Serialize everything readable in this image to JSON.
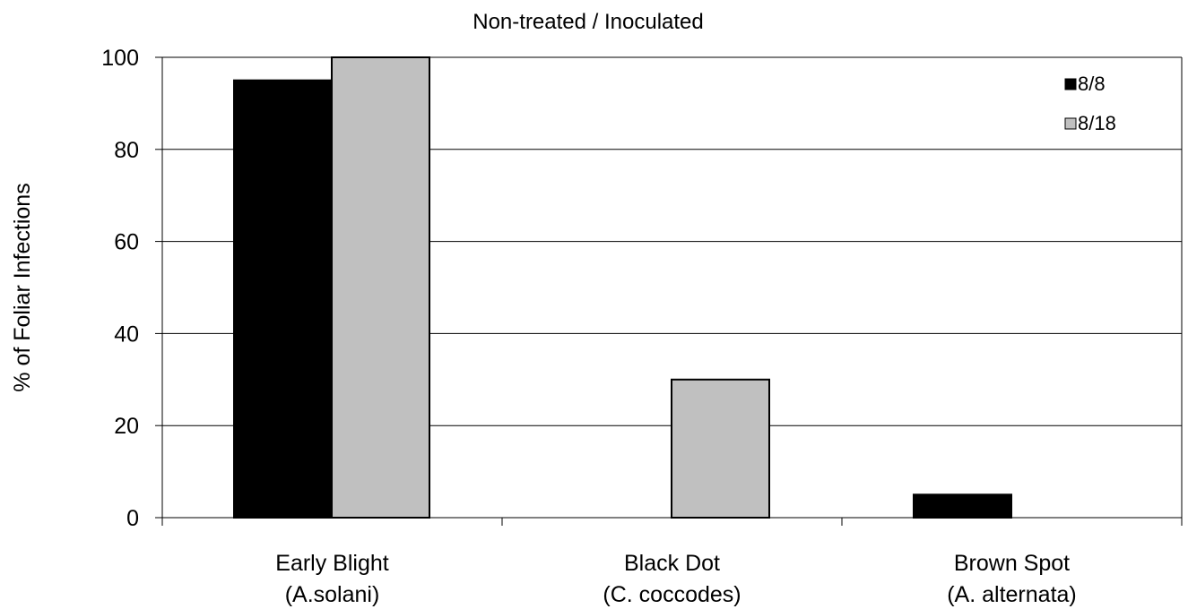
{
  "chart_data": {
    "type": "bar",
    "title": "Non-treated / Inoculated",
    "xlabel": "",
    "ylabel": "% of Foliar Infections",
    "categories": [
      [
        "Early Blight",
        "(A.solani)"
      ],
      [
        "Black Dot",
        "(C. coccodes)"
      ],
      [
        "Brown Spot",
        "(A. alternata)"
      ]
    ],
    "series": [
      {
        "name": "8/8",
        "values": [
          95,
          0,
          5
        ],
        "color": "#000000"
      },
      {
        "name": "8/18",
        "values": [
          100,
          30,
          0
        ],
        "color": "#c0c0c0"
      }
    ],
    "ylim": [
      0,
      100
    ],
    "yticks": [
      0,
      20,
      40,
      60,
      80,
      100
    ],
    "grid": true,
    "legend_position": "top-right"
  }
}
